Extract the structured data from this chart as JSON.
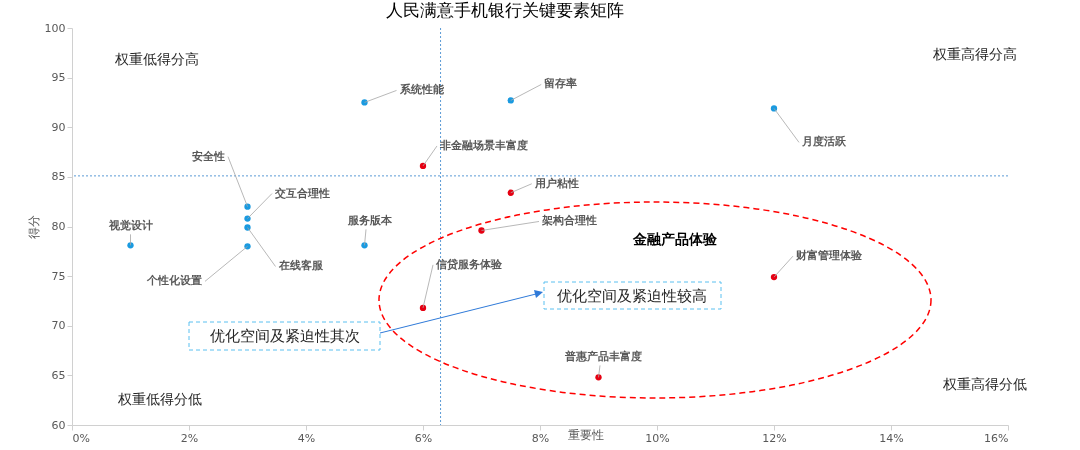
{
  "chart_data": {
    "type": "scatter",
    "title": "人民满意手机银行关键要素矩阵",
    "xlabel": "重要性",
    "ylabel": "得分",
    "xlim": [
      0,
      16
    ],
    "xticks": [
      {
        "value": 0,
        "label": "0%"
      },
      {
        "value": 2,
        "label": "2%"
      },
      {
        "value": 4,
        "label": "4%"
      },
      {
        "value": 6,
        "label": "6%"
      },
      {
        "value": 8,
        "label": "8%"
      },
      {
        "value": 10,
        "label": "10%"
      },
      {
        "value": 12,
        "label": "12%"
      },
      {
        "value": 14,
        "label": "14%"
      },
      {
        "value": 16,
        "label": "16%"
      }
    ],
    "ylim": [
      60,
      100
    ],
    "yticks": [
      60,
      65,
      70,
      75,
      80,
      85,
      90,
      95,
      100
    ],
    "grid": false,
    "marker": "circle",
    "series": [
      {
        "color": "#1a9ae0",
        "x": [
          1,
          3,
          3,
          3,
          3,
          5,
          5,
          7.5,
          12
        ],
        "values": [
          78.1,
          82,
          80.8,
          79.9,
          78,
          78.1,
          92.5,
          92.7,
          91.9
        ]
      },
      {
        "color": "#e60012",
        "x": [
          6,
          7.5,
          7,
          6,
          12,
          9
        ],
        "values": [
          86.1,
          83.4,
          79.6,
          71.8,
          74.9,
          64.8
        ]
      }
    ],
    "ref_lines": [
      {
        "axis": "x",
        "value": 6.3,
        "color": "#5b9bd5",
        "line_style": "dotted"
      },
      {
        "axis": "y",
        "value": 85.1,
        "color": "#5b9bd5",
        "line_style": "dotted"
      }
    ],
    "annotations": [
      {
        "text": "视觉设计",
        "x": 1,
        "y": 78.1
      },
      {
        "text": "安全性",
        "x": 3,
        "y": 82
      },
      {
        "text": "交互合理性",
        "x": 3,
        "y": 80.8
      },
      {
        "text": "在线客服",
        "x": 3,
        "y": 79.9
      },
      {
        "text": "个性化设置",
        "x": 3,
        "y": 78
      },
      {
        "text": "服务版本",
        "x": 5,
        "y": 78.1
      },
      {
        "text": "系统性能",
        "x": 5,
        "y": 92.5
      },
      {
        "text": "留存率",
        "x": 7.5,
        "y": 92.7
      },
      {
        "text": "月度活跃",
        "x": 12,
        "y": 91.9
      },
      {
        "text": "非金融场景丰富度",
        "x": 6,
        "y": 86.1
      },
      {
        "text": "用户粘性",
        "x": 7.5,
        "y": 83.4
      },
      {
        "text": "架构合理性",
        "x": 7,
        "y": 79.6
      },
      {
        "text": "信贷服务体验",
        "x": 6,
        "y": 71.8
      },
      {
        "text": "财富管理体验",
        "x": 12,
        "y": 74.9
      },
      {
        "text": "普惠产品丰富度",
        "x": 9,
        "y": 64.8
      },
      "权重低得分高",
      "权重高得分高",
      "权重低得分低",
      "权重高得分低",
      "金融产品体验",
      "优化空间及紧迫性较高",
      "优化空间及紧迫性其次"
    ]
  }
}
